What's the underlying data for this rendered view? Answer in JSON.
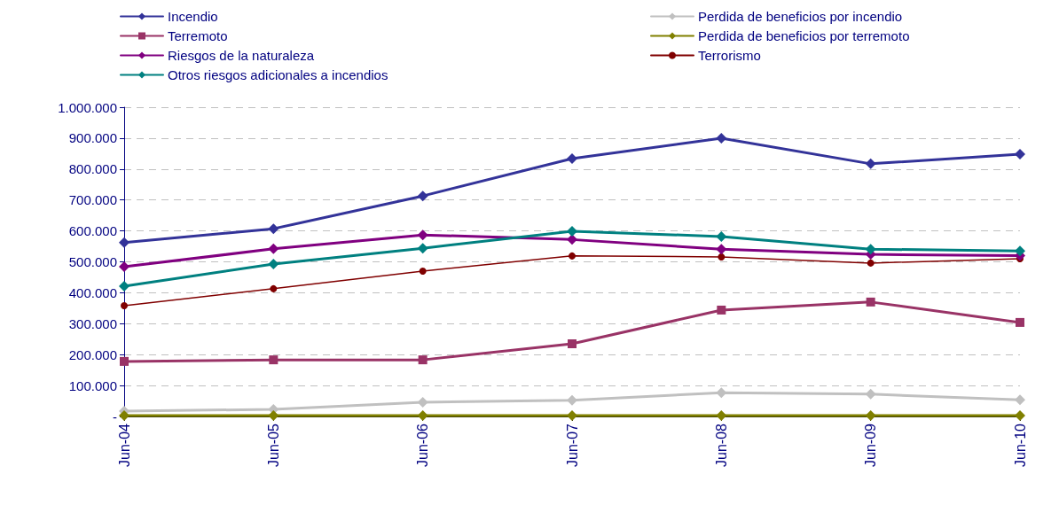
{
  "chart_data": {
    "type": "line",
    "categories": [
      "Jun-04",
      "Jun-05",
      "Jun-06",
      "Jun-07",
      "Jun-08",
      "Jun-09",
      "Jun-10"
    ],
    "series": [
      {
        "name": "Incendio",
        "color": "#333399",
        "marker": "diamond",
        "values": [
          562000,
          607000,
          713000,
          834000,
          900000,
          817000,
          848000
        ]
      },
      {
        "name": "Terremoto",
        "color": "#993366",
        "marker": "square",
        "values": [
          178000,
          183000,
          183000,
          235000,
          344000,
          370000,
          304000
        ]
      },
      {
        "name": "Riesgos de la naturaleza",
        "color": "#800080",
        "marker": "diamond",
        "values": [
          484000,
          542000,
          587000,
          572000,
          541000,
          524000,
          520000
        ]
      },
      {
        "name": "Otros riesgos adicionales a incendios",
        "color": "#008080",
        "marker": "diamond",
        "values": [
          421000,
          493000,
          544000,
          599000,
          582000,
          541000,
          535000
        ]
      },
      {
        "name": "Perdida de beneficios por incendio",
        "color": "#c0c0c0",
        "marker": "diamond",
        "values": [
          17000,
          23000,
          46000,
          52000,
          77000,
          72000,
          54000
        ]
      },
      {
        "name": "Perdida de beneficios por terremoto",
        "color": "#808000",
        "marker": "diamond",
        "values": [
          3000,
          3000,
          3000,
          3000,
          3000,
          3000,
          3000
        ]
      },
      {
        "name": "Terrorismo",
        "color": "#800000",
        "marker": "circle",
        "values": [
          358000,
          413000,
          470000,
          519000,
          516000,
          496000,
          510000
        ]
      }
    ],
    "ylim": [
      0,
      1000000
    ],
    "yticks": [
      {
        "value": 0,
        "label": "-"
      },
      {
        "value": 100000,
        "label": "100.000"
      },
      {
        "value": 200000,
        "label": "200.000"
      },
      {
        "value": 300000,
        "label": "300.000"
      },
      {
        "value": 400000,
        "label": "400.000"
      },
      {
        "value": 500000,
        "label": "500.000"
      },
      {
        "value": 600000,
        "label": "600.000"
      },
      {
        "value": 700000,
        "label": "700.000"
      },
      {
        "value": 800000,
        "label": "800.000"
      },
      {
        "value": 900000,
        "label": "900.000"
      },
      {
        "value": 1000000,
        "label": "1.000.000"
      }
    ],
    "grid": "y",
    "legend": "top",
    "line_style": "solid"
  }
}
